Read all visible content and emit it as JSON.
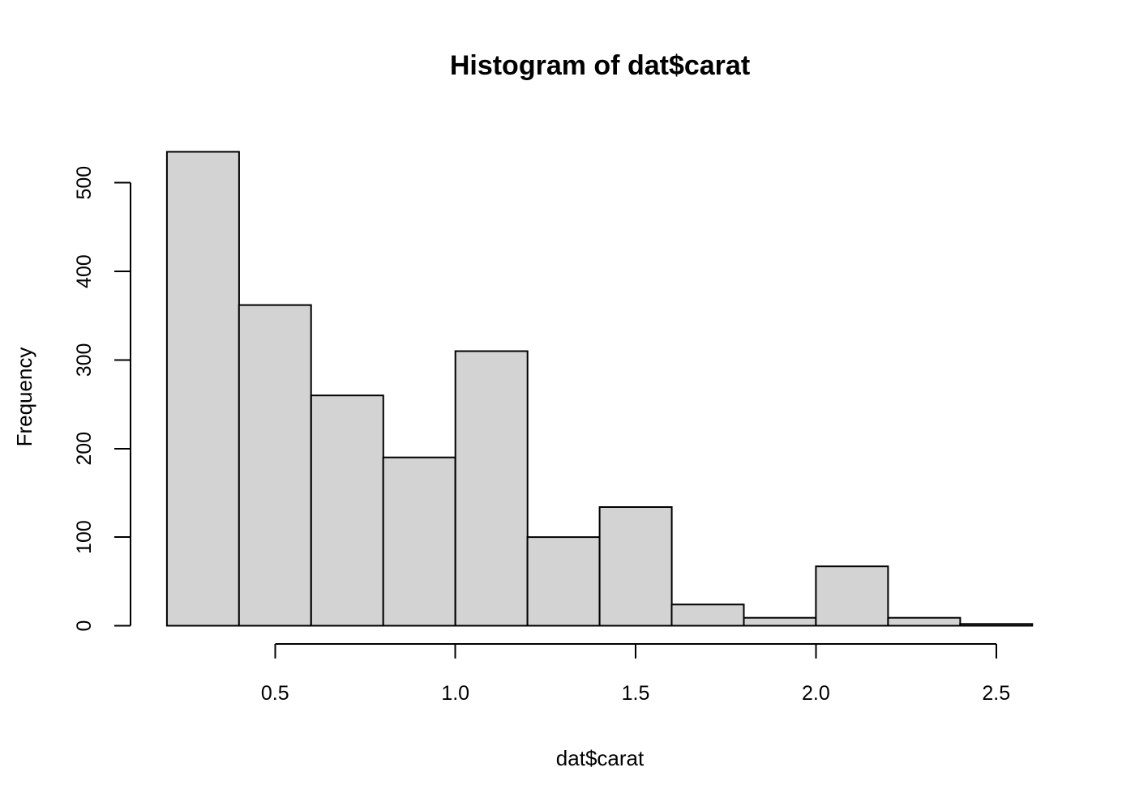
{
  "chart_data": {
    "type": "bar",
    "subtype": "histogram",
    "title": "Histogram of dat$carat",
    "xlabel": "dat$carat",
    "ylabel": "Frequency",
    "xlim": [
      0.2,
      2.6
    ],
    "ylim": [
      0,
      500
    ],
    "grid": false,
    "legend": null,
    "bin_width": 0.2,
    "bins": [
      {
        "x0": 0.2,
        "x1": 0.4,
        "count": 535
      },
      {
        "x0": 0.4,
        "x1": 0.6,
        "count": 362
      },
      {
        "x0": 0.6,
        "x1": 0.8,
        "count": 260
      },
      {
        "x0": 0.8,
        "x1": 1.0,
        "count": 190
      },
      {
        "x0": 1.0,
        "x1": 1.2,
        "count": 310
      },
      {
        "x0": 1.2,
        "x1": 1.4,
        "count": 100
      },
      {
        "x0": 1.4,
        "x1": 1.6,
        "count": 134
      },
      {
        "x0": 1.6,
        "x1": 1.8,
        "count": 24
      },
      {
        "x0": 1.8,
        "x1": 2.0,
        "count": 9
      },
      {
        "x0": 2.0,
        "x1": 2.2,
        "count": 67
      },
      {
        "x0": 2.2,
        "x1": 2.4,
        "count": 9
      },
      {
        "x0": 2.4,
        "x1": 2.6,
        "count": 2
      }
    ],
    "x_ticks": [
      {
        "value": 0.5,
        "label": "0.5"
      },
      {
        "value": 1.0,
        "label": "1.0"
      },
      {
        "value": 1.5,
        "label": "1.5"
      },
      {
        "value": 2.0,
        "label": "2.0"
      },
      {
        "value": 2.5,
        "label": "2.5"
      }
    ],
    "y_ticks": [
      {
        "value": 0,
        "label": "0"
      },
      {
        "value": 100,
        "label": "100"
      },
      {
        "value": 200,
        "label": "200"
      },
      {
        "value": 300,
        "label": "300"
      },
      {
        "value": 400,
        "label": "400"
      },
      {
        "value": 500,
        "label": "500"
      }
    ],
    "colors": {
      "bar_fill": "#d3d3d3",
      "bar_stroke": "#000000",
      "axis": "#000000",
      "text": "#000000",
      "background": "#ffffff"
    }
  }
}
